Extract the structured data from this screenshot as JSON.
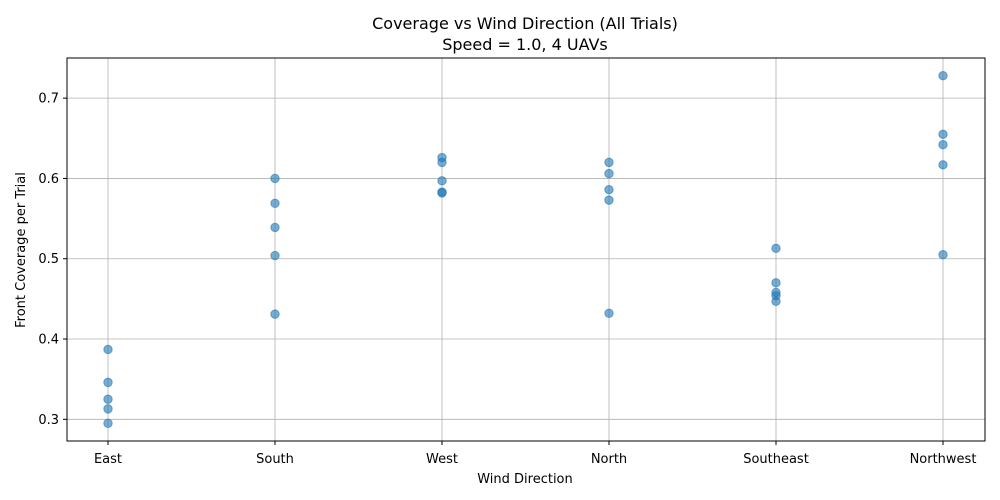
{
  "chart_data": {
    "type": "scatter",
    "title": "Coverage vs Wind Direction (All Trials)",
    "subtitle": "Speed = 1.0, 4 UAVs",
    "xlabel": "Wind Direction",
    "ylabel": "Front Coverage per Trial",
    "categories": [
      "East",
      "South",
      "West",
      "North",
      "Southeast",
      "Northwest"
    ],
    "ylim": [
      0.273,
      0.75
    ],
    "yticks": [
      0.3,
      0.4,
      0.5,
      0.6,
      0.7
    ],
    "ytick_labels": [
      "0.3",
      "0.4",
      "0.5",
      "0.6",
      "0.7"
    ],
    "grid": true,
    "color": "#1f77b4",
    "points": [
      {
        "x": "East",
        "y": 0.387
      },
      {
        "x": "East",
        "y": 0.346
      },
      {
        "x": "East",
        "y": 0.325
      },
      {
        "x": "East",
        "y": 0.313
      },
      {
        "x": "East",
        "y": 0.295
      },
      {
        "x": "South",
        "y": 0.6
      },
      {
        "x": "South",
        "y": 0.569
      },
      {
        "x": "South",
        "y": 0.539
      },
      {
        "x": "South",
        "y": 0.504
      },
      {
        "x": "South",
        "y": 0.431
      },
      {
        "x": "West",
        "y": 0.626
      },
      {
        "x": "West",
        "y": 0.62
      },
      {
        "x": "West",
        "y": 0.597
      },
      {
        "x": "West",
        "y": 0.583
      },
      {
        "x": "West",
        "y": 0.582
      },
      {
        "x": "North",
        "y": 0.62
      },
      {
        "x": "North",
        "y": 0.606
      },
      {
        "x": "North",
        "y": 0.586
      },
      {
        "x": "North",
        "y": 0.573
      },
      {
        "x": "North",
        "y": 0.432
      },
      {
        "x": "Southeast",
        "y": 0.513
      },
      {
        "x": "Southeast",
        "y": 0.47
      },
      {
        "x": "Southeast",
        "y": 0.458
      },
      {
        "x": "Southeast",
        "y": 0.454
      },
      {
        "x": "Southeast",
        "y": 0.447
      },
      {
        "x": "Northwest",
        "y": 0.728
      },
      {
        "x": "Northwest",
        "y": 0.655
      },
      {
        "x": "Northwest",
        "y": 0.642
      },
      {
        "x": "Northwest",
        "y": 0.617
      },
      {
        "x": "Northwest",
        "y": 0.505
      }
    ]
  }
}
